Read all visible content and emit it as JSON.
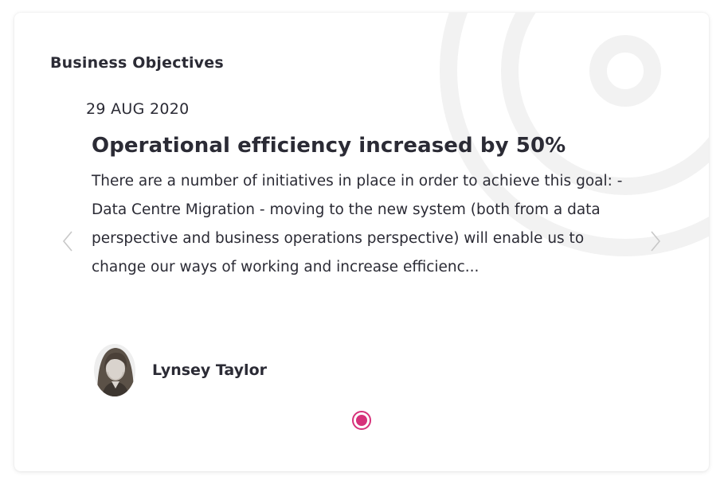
{
  "widget": {
    "title": "Business Objectives"
  },
  "carousel": {
    "slides": [
      {
        "date": "29 AUG 2020",
        "headline": "Operational efficiency increased by 50%",
        "body": "There are a number of initiatives in place in order to achieve this goal: - Data Centre Migration - moving to the new system (both from a data perspective and business operations perspective) will enable us to change our ways of working and increase efficienc...",
        "author": {
          "name": "Lynsey Taylor",
          "avatar_icon": "person-photo"
        }
      }
    ],
    "active_index": 0,
    "prev_icon": "chevron-left-icon",
    "next_icon": "chevron-right-icon",
    "indicator_icon": "radio-dot-icon"
  },
  "colors": {
    "accent": "#d6317a",
    "text": "#2b2b35",
    "decor": "#f2f2f2",
    "arrow": "#c8c8c8"
  }
}
